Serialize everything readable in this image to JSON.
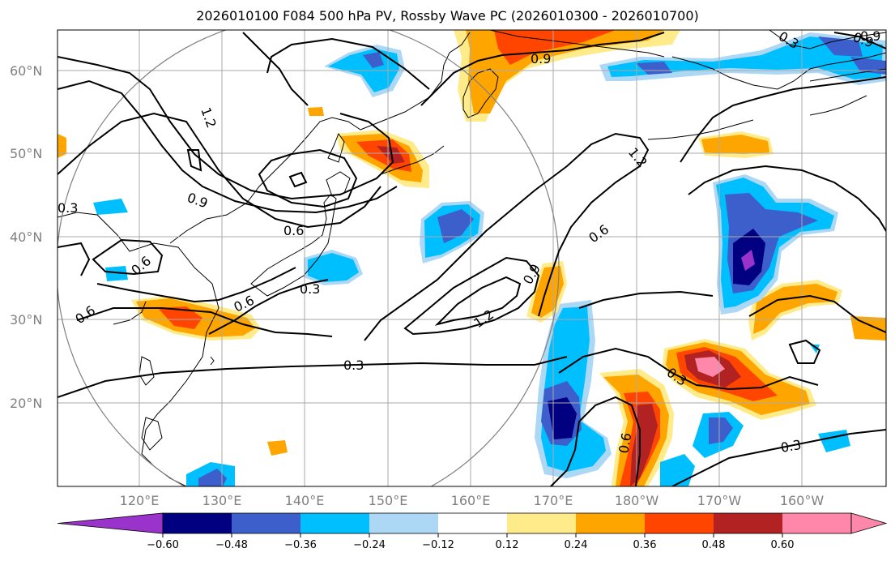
{
  "title": "2026010100 F084 500 hPa PV, Rossby Wave PC (2026010300 - 2026010700)",
  "lat_labels": [
    "60°N",
    "50°N",
    "40°N",
    "30°N",
    "20°N"
  ],
  "lon_labels": [
    "120°E",
    "130°E",
    "140°E",
    "150°E",
    "160°E",
    "170°E",
    "180°W",
    "170°W",
    "160°W"
  ],
  "contour_labels": [
    "1.2",
    "0.9",
    "0.9",
    "0.9",
    "0.6",
    "0.6",
    "0.6",
    "0.6",
    "0.6",
    "0.3",
    "0.3",
    "0.3",
    "0.3",
    "0.9",
    "1.2",
    "0.3",
    "0.6",
    "0.9",
    "1.2",
    "0.3"
  ],
  "colorbar": {
    "ticks": [
      "−0.60",
      "−0.48",
      "−0.36",
      "−0.24",
      "−0.12",
      "0.12",
      "0.24",
      "0.36",
      "0.48",
      "0.60"
    ],
    "colors": [
      "#9933cc",
      "#000080",
      "#3d5fcc",
      "#00bfff",
      "#add8f5",
      "#ffffff",
      "#ffeb8a",
      "#ffa500",
      "#ff4500",
      "#b22222",
      "#ff88aa",
      "#ff88aa"
    ]
  },
  "palette": {
    "neg_strong": "#000080",
    "neg_mid": "#3d5fcc",
    "neg_weak": "#00bfff",
    "neg_faint": "#add8f5",
    "pos_faint": "#ffeb8a",
    "pos_weak": "#ffa500",
    "pos_mid": "#ff4500",
    "pos_strong": "#b22222",
    "pos_max": "#ff88aa"
  }
}
